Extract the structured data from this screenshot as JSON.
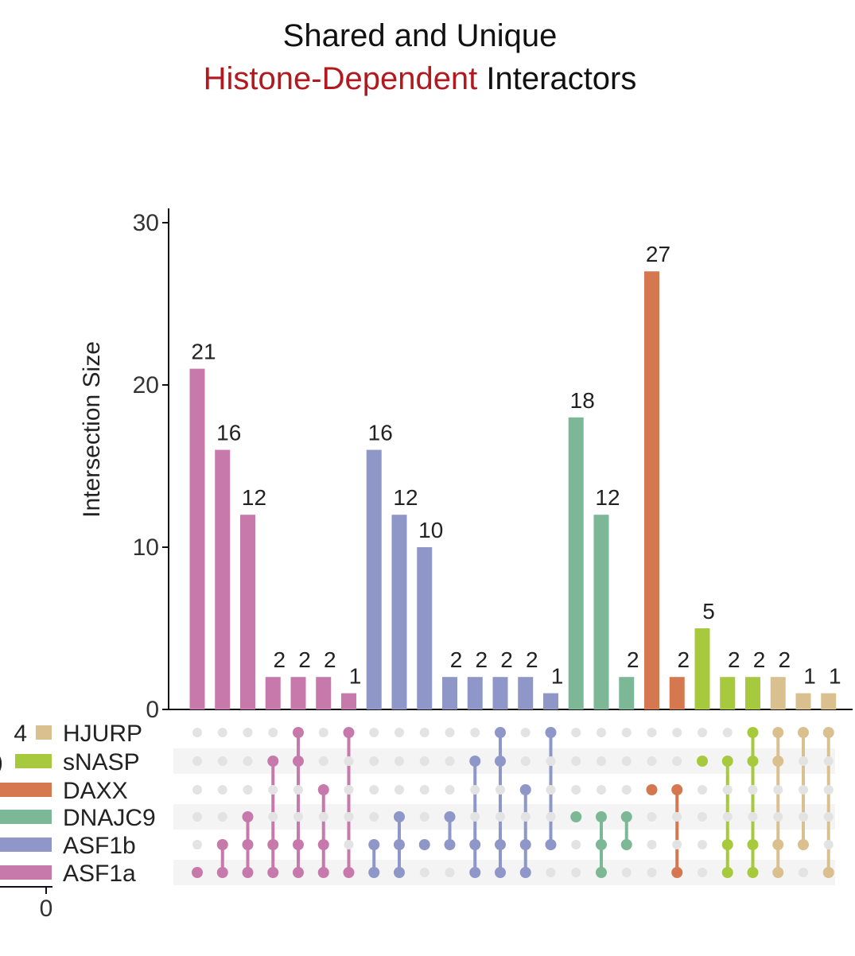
{
  "title": {
    "line1": "Shared and Unique",
    "line2_highlight": "Histone-Dependent",
    "line2_rest": " Interactors",
    "highlight_color": "#b2191e"
  },
  "chart_data": {
    "type": "bar",
    "subtype": "upset",
    "ylabel": "Intersection Size",
    "ylim": [
      0,
      30
    ],
    "yticks": [
      0,
      10,
      20,
      30
    ],
    "sets": [
      "HJURP",
      "sNASP",
      "DAXX",
      "DNAJC9",
      "ASF1b",
      "ASF1a"
    ],
    "set_colors": {
      "HJURP": "#dbc08f",
      "sNASP": "#a6c93e",
      "DAXX": "#d6784f",
      "DNAJC9": "#7cb895",
      "ASF1b": "#8e97c8",
      "ASF1a": "#c879ac"
    },
    "set_size_axis_tick": "0",
    "set_size_labels": {
      "HJURP": "4"
    },
    "intersections": [
      {
        "value": 21,
        "color_set": "ASF1a",
        "sets": [
          "ASF1a"
        ]
      },
      {
        "value": 16,
        "color_set": "ASF1a",
        "sets": [
          "ASF1a",
          "ASF1b"
        ]
      },
      {
        "value": 12,
        "color_set": "ASF1a",
        "sets": [
          "ASF1a",
          "ASF1b",
          "DNAJC9"
        ]
      },
      {
        "value": 2,
        "color_set": "ASF1a",
        "sets": [
          "ASF1a",
          "ASF1b",
          "sNASP"
        ]
      },
      {
        "value": 2,
        "color_set": "ASF1a",
        "sets": [
          "ASF1a",
          "ASF1b",
          "sNASP",
          "HJURP"
        ]
      },
      {
        "value": 2,
        "color_set": "ASF1a",
        "sets": [
          "ASF1a",
          "ASF1b",
          "DAXX"
        ]
      },
      {
        "value": 1,
        "color_set": "ASF1a",
        "sets": [
          "ASF1a",
          "HJURP"
        ]
      },
      {
        "value": 16,
        "color_set": "ASF1b",
        "sets": [
          "ASF1a",
          "ASF1b"
        ]
      },
      {
        "value": 12,
        "color_set": "ASF1b",
        "sets": [
          "ASF1a",
          "ASF1b",
          "DNAJC9"
        ]
      },
      {
        "value": 10,
        "color_set": "ASF1b",
        "sets": [
          "ASF1b"
        ]
      },
      {
        "value": 2,
        "color_set": "ASF1b",
        "sets": [
          "ASF1b",
          "DNAJC9"
        ]
      },
      {
        "value": 2,
        "color_set": "ASF1b",
        "sets": [
          "ASF1a",
          "ASF1b",
          "sNASP"
        ]
      },
      {
        "value": 2,
        "color_set": "ASF1b",
        "sets": [
          "ASF1a",
          "ASF1b",
          "sNASP",
          "HJURP"
        ]
      },
      {
        "value": 2,
        "color_set": "ASF1b",
        "sets": [
          "ASF1a",
          "ASF1b",
          "DAXX"
        ]
      },
      {
        "value": 1,
        "color_set": "ASF1b",
        "sets": [
          "ASF1b",
          "HJURP"
        ]
      },
      {
        "value": 18,
        "color_set": "DNAJC9",
        "sets": [
          "DNAJC9"
        ]
      },
      {
        "value": 12,
        "color_set": "DNAJC9",
        "sets": [
          "ASF1a",
          "ASF1b",
          "DNAJC9"
        ]
      },
      {
        "value": 2,
        "color_set": "DNAJC9",
        "sets": [
          "ASF1b",
          "DNAJC9"
        ]
      },
      {
        "value": 27,
        "color_set": "DAXX",
        "sets": [
          "DAXX"
        ]
      },
      {
        "value": 2,
        "color_set": "DAXX",
        "sets": [
          "ASF1a",
          "DAXX"
        ]
      },
      {
        "value": 5,
        "color_set": "sNASP",
        "sets": [
          "sNASP"
        ]
      },
      {
        "value": 2,
        "color_set": "sNASP",
        "sets": [
          "ASF1a",
          "ASF1b",
          "sNASP"
        ]
      },
      {
        "value": 2,
        "color_set": "sNASP",
        "sets": [
          "ASF1a",
          "ASF1b",
          "sNASP",
          "HJURP"
        ]
      },
      {
        "value": 2,
        "color_set": "HJURP",
        "sets": [
          "ASF1a",
          "ASF1b",
          "sNASP",
          "HJURP"
        ]
      },
      {
        "value": 1,
        "color_set": "HJURP",
        "sets": [
          "ASF1b",
          "HJURP"
        ]
      },
      {
        "value": 1,
        "color_set": "HJURP",
        "sets": [
          "ASF1a",
          "HJURP"
        ]
      }
    ]
  }
}
